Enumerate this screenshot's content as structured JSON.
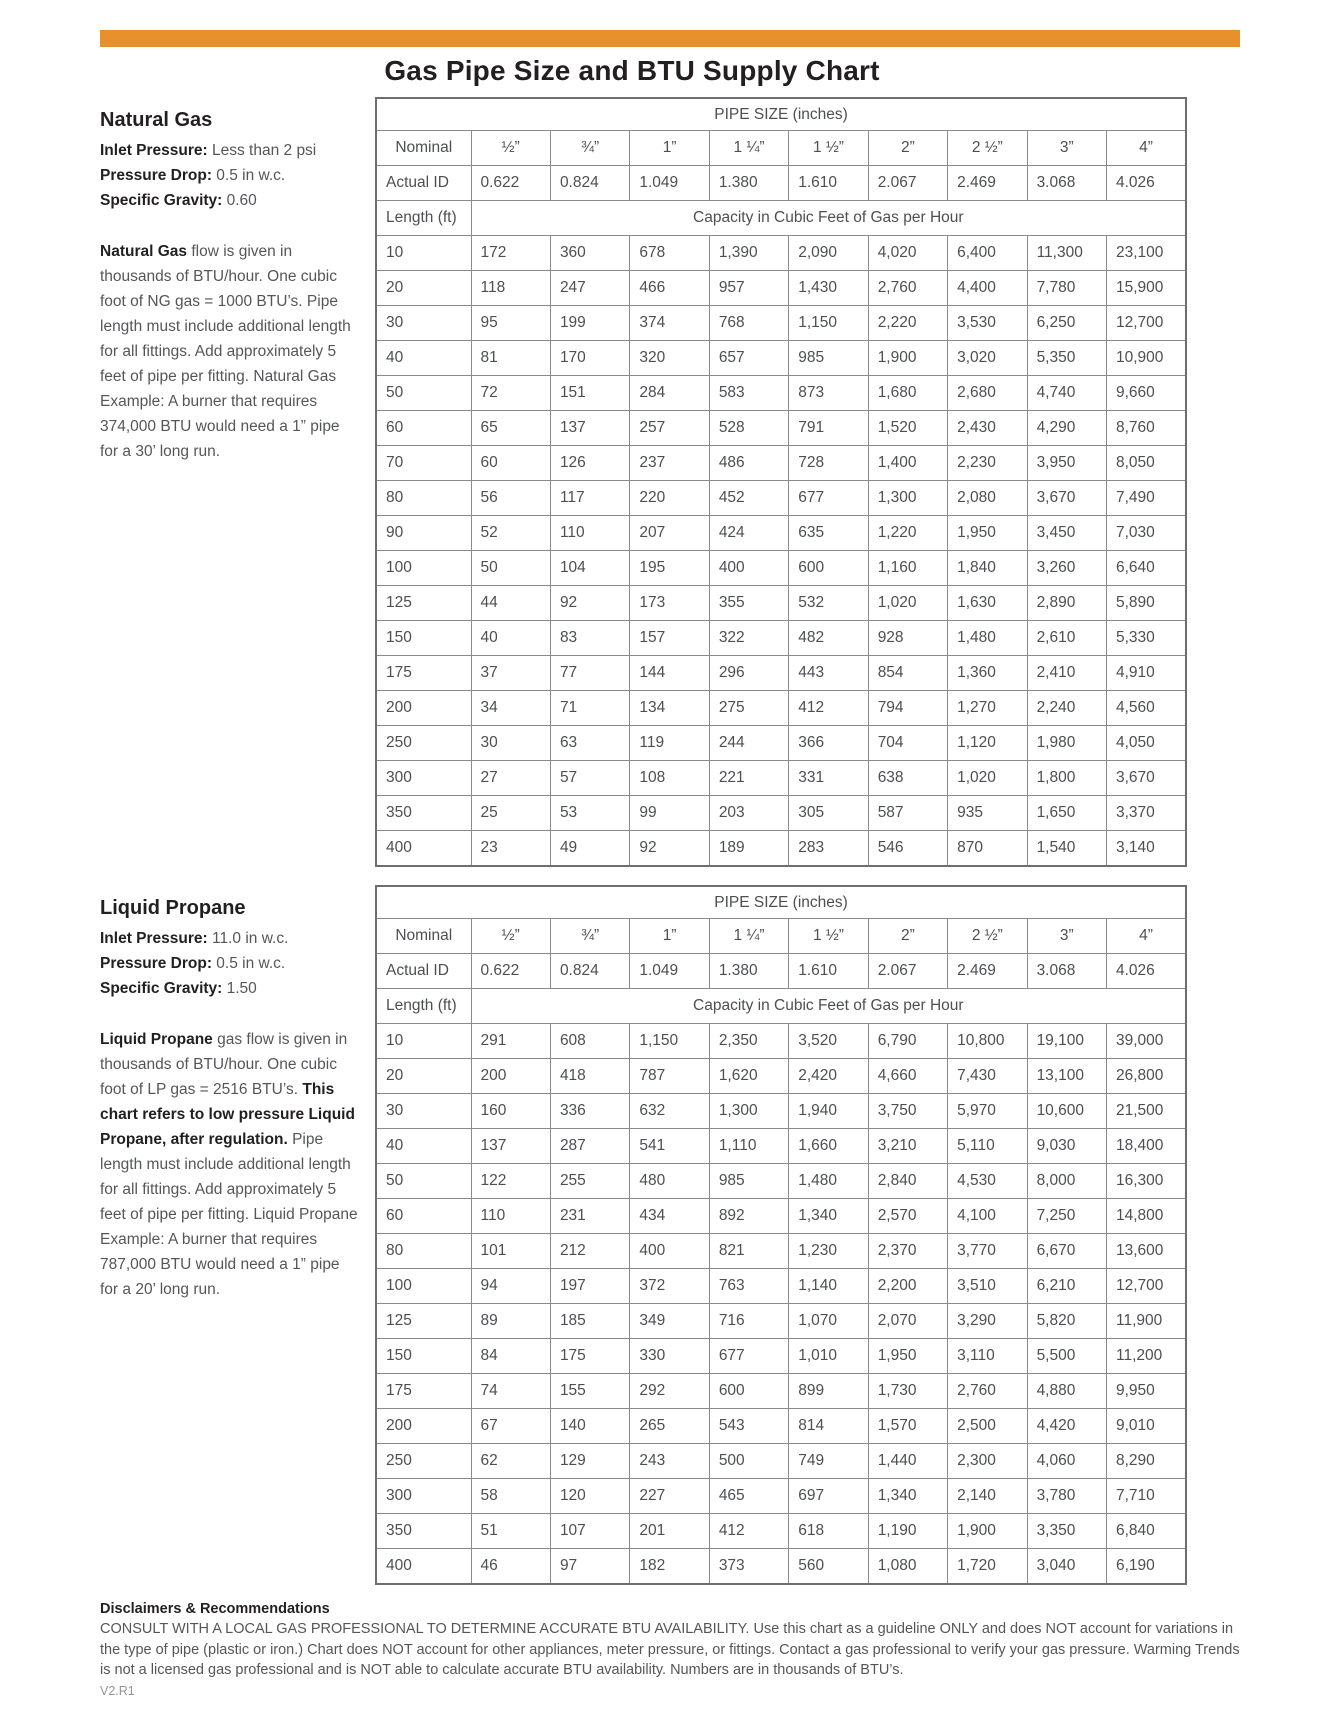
{
  "page": {
    "title": "Gas Pipe Size and BTU Supply Chart",
    "accent_color": "#e8912c",
    "version": "V2.R1"
  },
  "natural_gas": {
    "heading": "Natural Gas",
    "specs": [
      {
        "label": "Inlet Pressure:",
        "value": "Less than 2 psi"
      },
      {
        "label": "Pressure Drop:",
        "value": "0.5 in w.c."
      },
      {
        "label": "Specific Gravity:",
        "value": "0.60"
      }
    ],
    "paragraph": [
      {
        "bold": true,
        "text": "Natural Gas"
      },
      {
        "bold": false,
        "text": " flow is given in thousands of BTU/hour. One cubic foot of NG gas = 1000 BTU’s. Pipe length must include additional length for all fittings. Add approximately 5 feet of pipe per fitting. Natural Gas Example: A burner that requires 374,000 BTU would need a 1” pipe for a 30’ long run."
      }
    ],
    "table": {
      "pipe_size_header": "PIPE SIZE (inches)",
      "nominal_label": "Nominal",
      "nominal_sizes": [
        "½”",
        "¾”",
        "1”",
        "1 ¼”",
        "1 ½”",
        "2”",
        "2 ½”",
        "3”",
        "4”"
      ],
      "actual_id_label": "Actual ID",
      "actual_ids": [
        "0.622",
        "0.824",
        "1.049",
        "1.380",
        "1.610",
        "2.067",
        "2.469",
        "3.068",
        "4.026"
      ],
      "length_label": "Length (ft)",
      "capacity_label": "Capacity in Cubic Feet of Gas per Hour",
      "rows": [
        [
          "10",
          "172",
          "360",
          "678",
          "1,390",
          "2,090",
          "4,020",
          "6,400",
          "11,300",
          "23,100"
        ],
        [
          "20",
          "118",
          "247",
          "466",
          "957",
          "1,430",
          "2,760",
          "4,400",
          "7,780",
          "15,900"
        ],
        [
          "30",
          "95",
          "199",
          "374",
          "768",
          "1,150",
          "2,220",
          "3,530",
          "6,250",
          "12,700"
        ],
        [
          "40",
          "81",
          "170",
          "320",
          "657",
          "985",
          "1,900",
          "3,020",
          "5,350",
          "10,900"
        ],
        [
          "50",
          "72",
          "151",
          "284",
          "583",
          "873",
          "1,680",
          "2,680",
          "4,740",
          "9,660"
        ],
        [
          "60",
          "65",
          "137",
          "257",
          "528",
          "791",
          "1,520",
          "2,430",
          "4,290",
          "8,760"
        ],
        [
          "70",
          "60",
          "126",
          "237",
          "486",
          "728",
          "1,400",
          "2,230",
          "3,950",
          "8,050"
        ],
        [
          "80",
          "56",
          "117",
          "220",
          "452",
          "677",
          "1,300",
          "2,080",
          "3,670",
          "7,490"
        ],
        [
          "90",
          "52",
          "110",
          "207",
          "424",
          "635",
          "1,220",
          "1,950",
          "3,450",
          "7,030"
        ],
        [
          "100",
          "50",
          "104",
          "195",
          "400",
          "600",
          "1,160",
          "1,840",
          "3,260",
          "6,640"
        ],
        [
          "125",
          "44",
          "92",
          "173",
          "355",
          "532",
          "1,020",
          "1,630",
          "2,890",
          "5,890"
        ],
        [
          "150",
          "40",
          "83",
          "157",
          "322",
          "482",
          "928",
          "1,480",
          "2,610",
          "5,330"
        ],
        [
          "175",
          "37",
          "77",
          "144",
          "296",
          "443",
          "854",
          "1,360",
          "2,410",
          "4,910"
        ],
        [
          "200",
          "34",
          "71",
          "134",
          "275",
          "412",
          "794",
          "1,270",
          "2,240",
          "4,560"
        ],
        [
          "250",
          "30",
          "63",
          "119",
          "244",
          "366",
          "704",
          "1,120",
          "1,980",
          "4,050"
        ],
        [
          "300",
          "27",
          "57",
          "108",
          "221",
          "331",
          "638",
          "1,020",
          "1,800",
          "3,670"
        ],
        [
          "350",
          "25",
          "53",
          "99",
          "203",
          "305",
          "587",
          "935",
          "1,650",
          "3,370"
        ],
        [
          "400",
          "23",
          "49",
          "92",
          "189",
          "283",
          "546",
          "870",
          "1,540",
          "3,140"
        ]
      ]
    }
  },
  "liquid_propane": {
    "heading": "Liquid Propane",
    "specs": [
      {
        "label": "Inlet Pressure:",
        "value": "11.0 in w.c."
      },
      {
        "label": "Pressure Drop:",
        "value": "0.5 in w.c."
      },
      {
        "label": "Specific Gravity:",
        "value": "1.50"
      }
    ],
    "paragraph": [
      {
        "bold": true,
        "text": "Liquid Propane"
      },
      {
        "bold": false,
        "text": " gas flow is given in thousands of BTU/hour. One cubic foot of LP gas = 2516 BTU’s. "
      },
      {
        "bold": true,
        "text": "This chart refers to low pressure Liquid Propane, after regulation."
      },
      {
        "bold": false,
        "text": " Pipe length must include additional length for all fittings. Add approximately 5 feet of pipe per fitting. Liquid Propane Example: A burner that requires 787,000 BTU would need a 1” pipe for a 20’ long run."
      }
    ],
    "table": {
      "pipe_size_header": "PIPE SIZE (inches)",
      "nominal_label": "Nominal",
      "nominal_sizes": [
        "½”",
        "¾”",
        "1”",
        "1 ¼”",
        "1 ½”",
        "2”",
        "2 ½”",
        "3”",
        "4”"
      ],
      "actual_id_label": "Actual ID",
      "actual_ids": [
        "0.622",
        "0.824",
        "1.049",
        "1.380",
        "1.610",
        "2.067",
        "2.469",
        "3.068",
        "4.026"
      ],
      "length_label": "Length (ft)",
      "capacity_label": "Capacity in Cubic Feet of Gas per Hour",
      "rows": [
        [
          "10",
          "291",
          "608",
          "1,150",
          "2,350",
          "3,520",
          "6,790",
          "10,800",
          "19,100",
          "39,000"
        ],
        [
          "20",
          "200",
          "418",
          "787",
          "1,620",
          "2,420",
          "4,660",
          "7,430",
          "13,100",
          "26,800"
        ],
        [
          "30",
          "160",
          "336",
          "632",
          "1,300",
          "1,940",
          "3,750",
          "5,970",
          "10,600",
          "21,500"
        ],
        [
          "40",
          "137",
          "287",
          "541",
          "1,110",
          "1,660",
          "3,210",
          "5,110",
          "9,030",
          "18,400"
        ],
        [
          "50",
          "122",
          "255",
          "480",
          "985",
          "1,480",
          "2,840",
          "4,530",
          "8,000",
          "16,300"
        ],
        [
          "60",
          "110",
          "231",
          "434",
          "892",
          "1,340",
          "2,570",
          "4,100",
          "7,250",
          "14,800"
        ],
        [
          "80",
          "101",
          "212",
          "400",
          "821",
          "1,230",
          "2,370",
          "3,770",
          "6,670",
          "13,600"
        ],
        [
          "100",
          "94",
          "197",
          "372",
          "763",
          "1,140",
          "2,200",
          "3,510",
          "6,210",
          "12,700"
        ],
        [
          "125",
          "89",
          "185",
          "349",
          "716",
          "1,070",
          "2,070",
          "3,290",
          "5,820",
          "11,900"
        ],
        [
          "150",
          "84",
          "175",
          "330",
          "677",
          "1,010",
          "1,950",
          "3,110",
          "5,500",
          "11,200"
        ],
        [
          "175",
          "74",
          "155",
          "292",
          "600",
          "899",
          "1,730",
          "2,760",
          "4,880",
          "9,950"
        ],
        [
          "200",
          "67",
          "140",
          "265",
          "543",
          "814",
          "1,570",
          "2,500",
          "4,420",
          "9,010"
        ],
        [
          "250",
          "62",
          "129",
          "243",
          "500",
          "749",
          "1,440",
          "2,300",
          "4,060",
          "8,290"
        ],
        [
          "300",
          "58",
          "120",
          "227",
          "465",
          "697",
          "1,340",
          "2,140",
          "3,780",
          "7,710"
        ],
        [
          "350",
          "51",
          "107",
          "201",
          "412",
          "618",
          "1,190",
          "1,900",
          "3,350",
          "6,840"
        ],
        [
          "400",
          "46",
          "97",
          "182",
          "373",
          "560",
          "1,080",
          "1,720",
          "3,040",
          "6,190"
        ]
      ]
    }
  },
  "disclaimer": {
    "heading": "Disclaimers & Recommendations",
    "body": "CONSULT WITH A LOCAL GAS PROFESSIONAL TO DETERMINE ACCURATE BTU AVAILABILITY. Use this chart as a guideline ONLY and does NOT account for variations in the type of pipe (plastic or iron.) Chart does NOT account for other appliances, meter pressure, or fittings. Contact a gas professional to verify your gas pressure. Warming Trends is not a licensed gas professional and is NOT able to calculate accurate BTU availability. Numbers are in thousands of BTU’s."
  }
}
